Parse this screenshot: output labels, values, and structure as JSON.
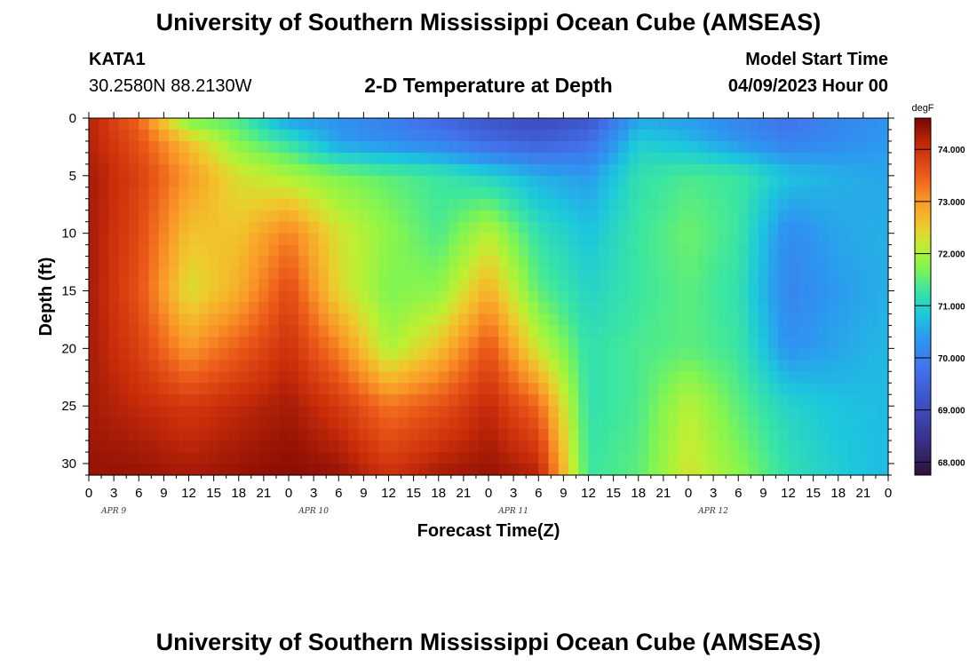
{
  "header": {
    "main_title": "University of Southern Mississippi Ocean Cube (AMSEAS)",
    "station_id": "KATA1",
    "station_coords": "30.2580N  88.2130W",
    "chart_title": "2-D Temperature at Depth",
    "start_label": "Model Start Time",
    "start_value": "04/09/2023 Hour 00"
  },
  "footer": {
    "title": "University of Southern Mississippi Ocean Cube (AMSEAS)"
  },
  "chart_data": {
    "type": "heatmap",
    "title": "2-D Temperature at Depth",
    "xlabel": "Forecast Time(Z)",
    "ylabel": "Depth (ft)",
    "units": "degF",
    "x_hours_range": [
      0,
      96
    ],
    "x_ticks": [
      "0",
      "3",
      "6",
      "9",
      "12",
      "15",
      "18",
      "21",
      "0",
      "3",
      "6",
      "9",
      "12",
      "15",
      "18",
      "21",
      "0",
      "3",
      "6",
      "9",
      "12",
      "15",
      "18",
      "21",
      "0",
      "3",
      "6",
      "9",
      "12",
      "15",
      "18",
      "21",
      "0"
    ],
    "date_labels": [
      "APR 9",
      "APR 10",
      "APR 11",
      "APR 12"
    ],
    "y_ticks": [
      "0",
      "5",
      "10",
      "15",
      "20",
      "25",
      "30"
    ],
    "y_range_ft": [
      0,
      31
    ],
    "colorbar_ticks": [
      "74.000",
      "73.000",
      "72.000",
      "71.000",
      "70.000",
      "69.000",
      "68.000"
    ],
    "colorbar_range": [
      67.75,
      74.6
    ],
    "hours": [
      0,
      6,
      12,
      18,
      24,
      30,
      36,
      42,
      48,
      54,
      60,
      66,
      72,
      78,
      84,
      90,
      96
    ],
    "depths_ft": [
      0,
      2,
      5,
      10,
      15,
      20,
      25,
      31
    ],
    "values": [
      [
        74.2,
        73.4,
        71.6,
        71.4,
        70.4,
        70.3,
        70.0,
        69.6,
        69.2,
        69.0,
        69.2,
        70.5,
        70.4,
        70.1,
        69.8,
        70.1,
        70.3
      ],
      [
        74.2,
        73.6,
        72.6,
        71.7,
        71.2,
        70.4,
        70.2,
        70.0,
        69.6,
        69.4,
        69.7,
        70.9,
        70.7,
        70.3,
        70.0,
        70.2,
        70.4
      ],
      [
        74.3,
        73.8,
        73.0,
        72.3,
        72.0,
        71.7,
        71.5,
        71.3,
        71.0,
        70.6,
        70.4,
        71.2,
        71.4,
        71.3,
        70.8,
        70.6,
        70.5
      ],
      [
        74.3,
        73.7,
        72.6,
        72.6,
        73.2,
        72.3,
        71.8,
        71.4,
        72.1,
        71.2,
        70.8,
        71.3,
        71.6,
        71.3,
        70.2,
        70.5,
        70.6
      ],
      [
        74.3,
        73.6,
        72.3,
        72.8,
        73.7,
        72.4,
        71.7,
        71.8,
        72.8,
        71.5,
        71.0,
        71.3,
        71.5,
        71.2,
        70.1,
        70.4,
        70.6
      ],
      [
        74.3,
        73.8,
        73.0,
        73.5,
        74.0,
        73.2,
        72.0,
        72.6,
        73.6,
        72.2,
        71.2,
        71.4,
        71.5,
        71.3,
        70.3,
        70.5,
        70.7
      ],
      [
        74.3,
        74.1,
        73.9,
        74.1,
        74.3,
        73.9,
        73.3,
        73.6,
        74.1,
        73.4,
        71.2,
        71.4,
        72.1,
        71.5,
        71.0,
        70.8,
        70.7
      ],
      [
        74.4,
        74.4,
        74.3,
        74.4,
        74.5,
        74.4,
        74.0,
        74.3,
        74.4,
        74.2,
        71.3,
        71.5,
        72.3,
        71.8,
        71.2,
        70.9,
        70.7
      ]
    ]
  }
}
